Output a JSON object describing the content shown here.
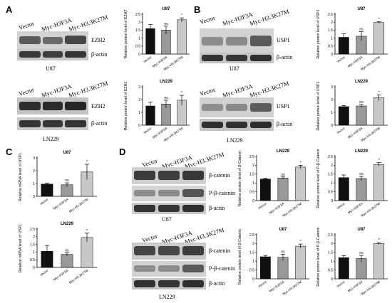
{
  "panels": {
    "A": {
      "letter": "A"
    },
    "B": {
      "letter": "B"
    },
    "C": {
      "letter": "C"
    },
    "D": {
      "letter": "D"
    }
  },
  "lanes": [
    "Vector",
    "Myc-H3F3A",
    "Myc-H3.3K27M"
  ],
  "blots": {
    "A_top": {
      "cell": "U87",
      "proteins": [
        "EZH2",
        "β-actin"
      ]
    },
    "A_bot": {
      "cell": "LN229",
      "proteins": [
        "EZH2",
        "β-actin"
      ]
    },
    "B_top": {
      "cell": "U87",
      "proteins": [
        "USP1",
        "β-actin"
      ]
    },
    "B_bot": {
      "cell": "LN229",
      "proteins": [
        "USP1",
        "β-actin"
      ]
    },
    "D_top": {
      "cell": "U87",
      "proteins": [
        "β-catenin",
        "P-β-catenin",
        "β-actin"
      ]
    },
    "D_bot": {
      "cell": "LN229",
      "proteins": [
        "β-catenin",
        "P-β-catenin",
        "β-actin"
      ]
    }
  },
  "chart_data": [
    {
      "id": "A1",
      "type": "bar",
      "title": "U87",
      "ylabel": "Relative protein level of EZH2",
      "categories": [
        "Vector",
        "Myc-H3F3A",
        "Myc-H3.3K27M"
      ],
      "values": [
        1.6,
        1.5,
        2.15
      ],
      "errors": [
        0.25,
        0.25,
        0.12
      ],
      "sig": [
        "",
        "ns",
        "*"
      ],
      "ylim": [
        0,
        2.5
      ],
      "yticks": [
        0,
        0.5,
        1.0,
        1.5,
        2.0,
        2.5
      ],
      "colors": [
        "#111111",
        "#999999",
        "#c8c8c8"
      ]
    },
    {
      "id": "A2",
      "type": "bar",
      "title": "LN229",
      "ylabel": "Relative protein level of EZH2",
      "categories": [
        "Vector",
        "Myc-H3F3A",
        "Myc-H3.3K27M"
      ],
      "values": [
        1.5,
        1.65,
        1.95
      ],
      "errors": [
        0.3,
        0.3,
        0.38
      ],
      "sig": [
        "",
        "ns",
        "*"
      ],
      "ylim": [
        0,
        3.0
      ],
      "yticks": [
        0,
        1,
        2,
        3
      ],
      "colors": [
        "#111111",
        "#999999",
        "#c8c8c8"
      ]
    },
    {
      "id": "B1",
      "type": "bar",
      "title": "U87",
      "ylabel": "Relative protein level of USP1",
      "categories": [
        "Vector",
        "Myc-H3F3A",
        "Myc-H3.3K27M"
      ],
      "values": [
        1.05,
        1.12,
        1.98
      ],
      "errors": [
        0.22,
        0.28,
        0.05
      ],
      "sig": [
        "",
        "ns",
        "*"
      ],
      "ylim": [
        0,
        2.5
      ],
      "yticks": [
        0,
        0.5,
        1.0,
        1.5,
        2.0,
        2.5
      ],
      "colors": [
        "#111111",
        "#999999",
        "#c8c8c8"
      ]
    },
    {
      "id": "B2",
      "type": "bar",
      "title": "LN229",
      "ylabel": "Relative protein level of USP1",
      "categories": [
        "Vector",
        "Myc-H3F3A",
        "Myc-H3.3K27M"
      ],
      "values": [
        1.45,
        1.5,
        2.15
      ],
      "errors": [
        0.08,
        0.12,
        0.22
      ],
      "sig": [
        "",
        "ns",
        "*"
      ],
      "ylim": [
        0,
        3.0
      ],
      "yticks": [
        0,
        1,
        2,
        3
      ],
      "colors": [
        "#111111",
        "#999999",
        "#c8c8c8"
      ]
    },
    {
      "id": "C1",
      "type": "bar",
      "title": "U87",
      "ylabel": "Relative mRNA level of USP1",
      "categories": [
        "Vector",
        "Myc-H3F3A",
        "Myc-H3.3K27M"
      ],
      "values": [
        0.95,
        0.9,
        1.9
      ],
      "errors": [
        0.08,
        0.15,
        0.6
      ],
      "sig": [
        "",
        "ns",
        "*"
      ],
      "ylim": [
        0,
        3.0
      ],
      "yticks": [
        0,
        1,
        2,
        3
      ],
      "colors": [
        "#111111",
        "#999999",
        "#c8c8c8"
      ]
    },
    {
      "id": "C2",
      "type": "bar",
      "title": "LN229",
      "ylabel": "Relative mRNA level of USP1",
      "categories": [
        "Vector",
        "Myc-H3F3A",
        "Myc-H3.3K27M"
      ],
      "values": [
        1.05,
        0.85,
        1.95
      ],
      "errors": [
        0.38,
        0.1,
        0.28
      ],
      "sig": [
        "",
        "ns",
        "*"
      ],
      "ylim": [
        0,
        2.5
      ],
      "yticks": [
        0,
        0.5,
        1.0,
        1.5,
        2.0,
        2.5
      ],
      "colors": [
        "#111111",
        "#999999",
        "#c8c8c8"
      ]
    },
    {
      "id": "D1",
      "type": "bar",
      "title": "LN229",
      "ylabel": "Relative protein level of β-Catenin",
      "categories": [
        "Vector",
        "Myc-H3F3A",
        "Myc-H3.3K27M"
      ],
      "values": [
        1.22,
        1.28,
        1.9
      ],
      "errors": [
        0.05,
        0.06,
        0.09
      ],
      "sig": [
        "",
        "ns",
        "*"
      ],
      "ylim": [
        0,
        2.5
      ],
      "yticks": [
        0,
        0.5,
        1.0,
        1.5,
        2.0,
        2.5
      ],
      "colors": [
        "#111111",
        "#999999",
        "#c8c8c8"
      ]
    },
    {
      "id": "D2",
      "type": "bar",
      "title": "LN229",
      "ylabel": "Relative protein level of P-β-Catenin",
      "categories": [
        "Vector",
        "Myc-H3F3A",
        "Myc-H3.3K27M"
      ],
      "values": [
        1.3,
        1.25,
        2.05
      ],
      "errors": [
        0.15,
        0.12,
        0.1
      ],
      "sig": [
        "",
        "ns",
        "*"
      ],
      "ylim": [
        0,
        2.5
      ],
      "yticks": [
        0,
        0.5,
        1.0,
        1.5,
        2.0,
        2.5
      ],
      "colors": [
        "#111111",
        "#999999",
        "#c8c8c8"
      ]
    },
    {
      "id": "D3",
      "type": "bar",
      "title": "U87",
      "ylabel": "Relative protein level of β-Catenin",
      "categories": [
        "Vector",
        "Myc-H3F3A",
        "Myc-H3.3K27M"
      ],
      "values": [
        1.25,
        1.22,
        1.85
      ],
      "errors": [
        0.08,
        0.18,
        0.12
      ],
      "sig": [
        "",
        "ns",
        "*"
      ],
      "ylim": [
        0,
        2.5
      ],
      "yticks": [
        0,
        0.5,
        1.0,
        1.5,
        2.0,
        2.5
      ],
      "colors": [
        "#111111",
        "#999999",
        "#c8c8c8"
      ]
    },
    {
      "id": "D4",
      "type": "bar",
      "title": "U87",
      "ylabel": "Relative protein level of P-β-Catenin",
      "categories": [
        "Vector",
        "Myc-H3F3A",
        "Myc-H3.3K27M"
      ],
      "values": [
        1.2,
        1.15,
        2.0
      ],
      "errors": [
        0.12,
        0.18,
        0.05
      ],
      "sig": [
        "",
        "ns",
        "*"
      ],
      "ylim": [
        0,
        2.5
      ],
      "yticks": [
        0,
        0.5,
        1.0,
        1.5,
        2.0,
        2.5
      ],
      "colors": [
        "#111111",
        "#999999",
        "#c8c8c8"
      ]
    }
  ]
}
